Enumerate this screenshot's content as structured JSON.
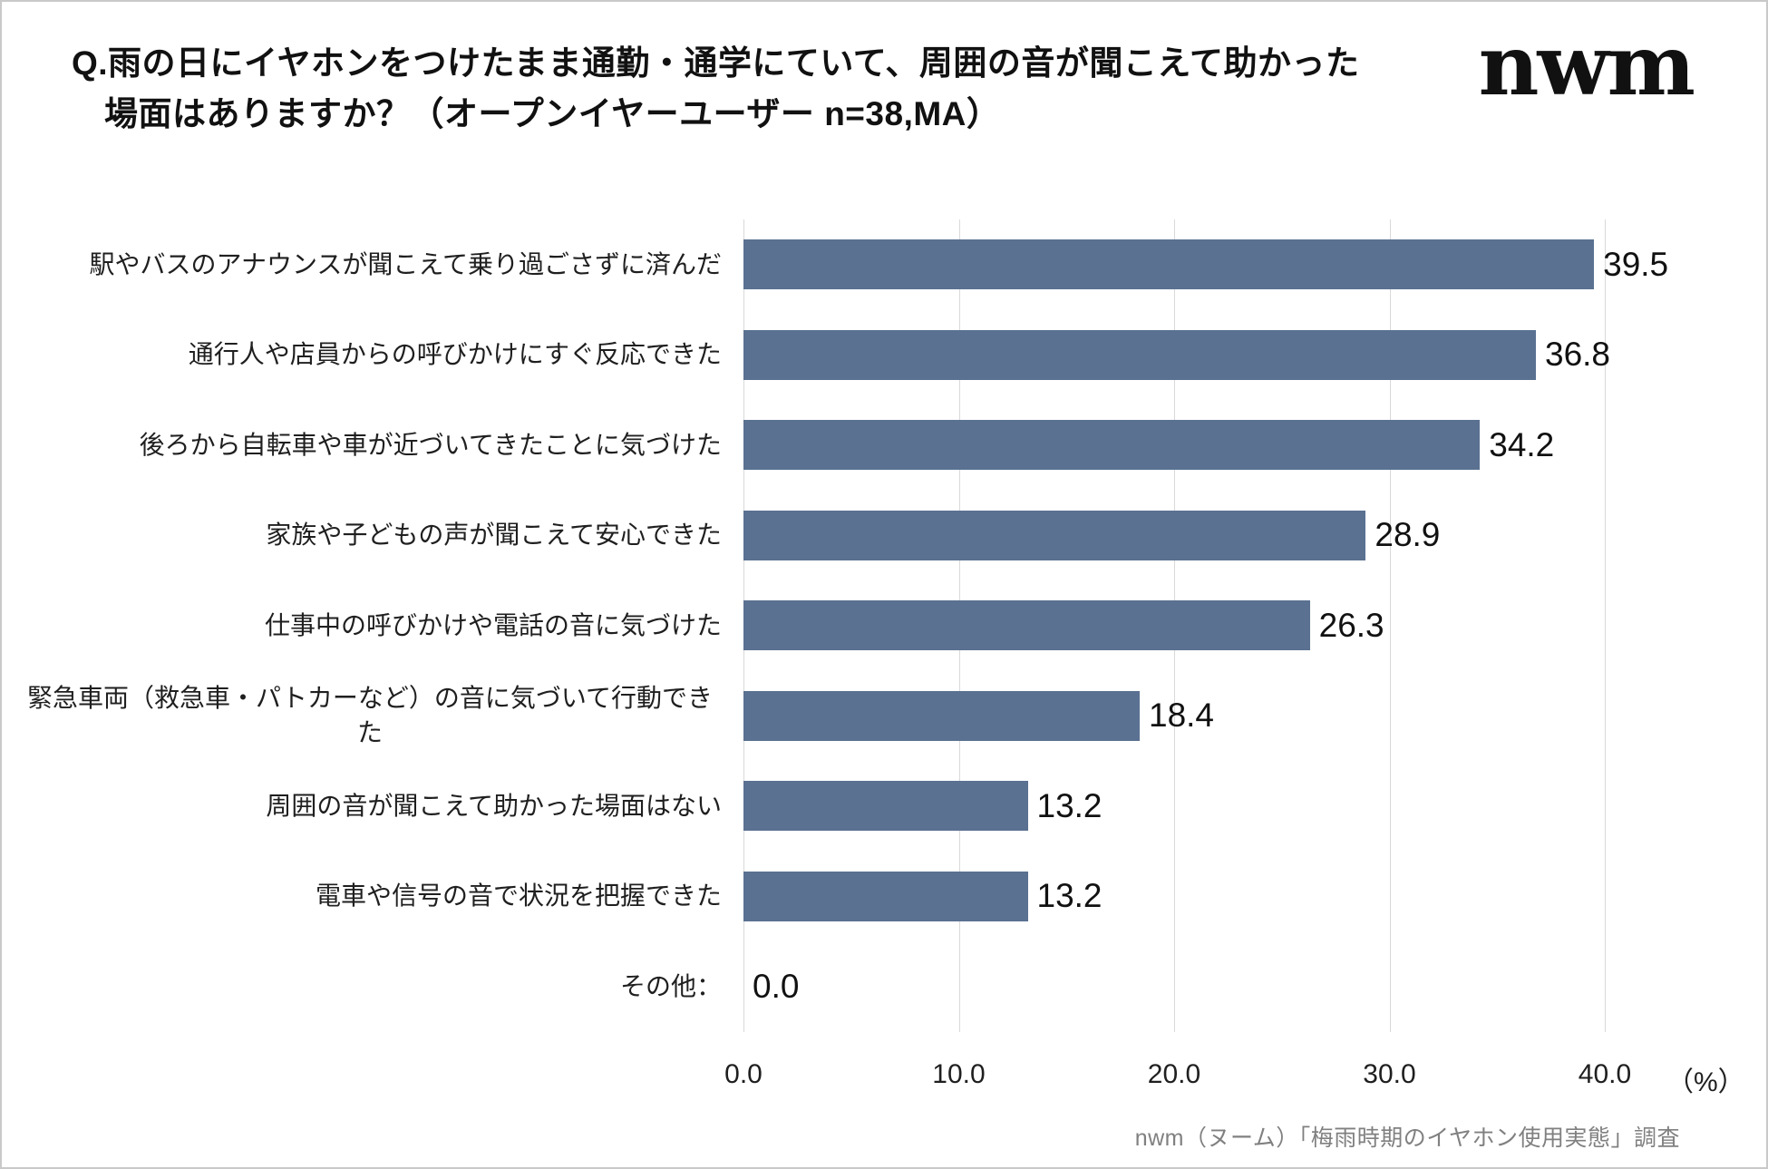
{
  "header": {
    "title_line1": "Q.雨の日にイヤホンをつけたまま通勤・通学にていて、周囲の音が聞こえて助かった",
    "title_line2": "場面はありますか？（オープンイヤーユーザー n=38,MA）",
    "logo": "nwm"
  },
  "chart_data": {
    "type": "bar",
    "orientation": "horizontal",
    "title": "雨の日にイヤホンをつけたまま通勤・通学していて、周囲の音が聞こえて助かった場面（オープンイヤーユーザー n=38,MA）",
    "categories": [
      "駅やバスのアナウンスが聞こえて乗り過ごさずに済んだ",
      "通行人や店員からの呼びかけにすぐ反応できた",
      "後ろから自転車や車が近づいてきたことに気づけた",
      "家族や子どもの声が聞こえて安心できた",
      "仕事中の呼びかけや電話の音に気づけた",
      "緊急車両（救急車・パトカーなど）の音に気づいて行動できた",
      "周囲の音が聞こえて助かった場面はない",
      "電車や信号の音で状況を把握できた",
      "その他："
    ],
    "values": [
      39.5,
      36.8,
      34.2,
      28.9,
      26.3,
      18.4,
      13.2,
      13.2,
      0.0
    ],
    "xlim": [
      0,
      40
    ],
    "x_ticks": [
      0,
      10,
      20,
      30,
      40
    ],
    "x_tick_labels": [
      "0.0",
      "10.0",
      "20.0",
      "30.0",
      "40.0"
    ],
    "x_unit": "（%）",
    "bar_color": "#5a7191",
    "grid": true,
    "legend": "none"
  },
  "footer": {
    "source": "nwm（ヌーム）「梅雨時期のイヤホン使用実態」調査"
  }
}
